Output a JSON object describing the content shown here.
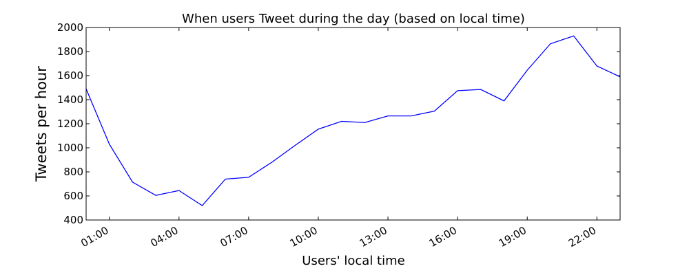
{
  "chart_data": {
    "type": "line",
    "title": "When users Tweet during the day (based on local time)",
    "xlabel": "Users' local time",
    "ylabel": "Tweets per hour",
    "x": [
      "00:00",
      "01:00",
      "02:00",
      "03:00",
      "04:00",
      "05:00",
      "06:00",
      "07:00",
      "08:00",
      "09:00",
      "10:00",
      "11:00",
      "12:00",
      "13:00",
      "14:00",
      "15:00",
      "16:00",
      "17:00",
      "18:00",
      "19:00",
      "20:00",
      "21:00",
      "22:00",
      "23:00"
    ],
    "series": [
      {
        "values": [
          1490,
          1030,
          715,
          605,
          645,
          520,
          740,
          755,
          880,
          1020,
          1155,
          1220,
          1210,
          1265,
          1265,
          1305,
          1475,
          1485,
          1390,
          1645,
          1865,
          1930,
          1680,
          1590
        ]
      }
    ],
    "xticks": [
      "01:00",
      "04:00",
      "07:00",
      "10:00",
      "13:00",
      "16:00",
      "19:00",
      "22:00"
    ],
    "yticks": [
      400,
      600,
      800,
      1000,
      1200,
      1400,
      1600,
      1800,
      2000
    ],
    "xlim": [
      0,
      23
    ],
    "ylim": [
      400,
      2000
    ],
    "grid": false,
    "line_color": "#0000ff"
  }
}
